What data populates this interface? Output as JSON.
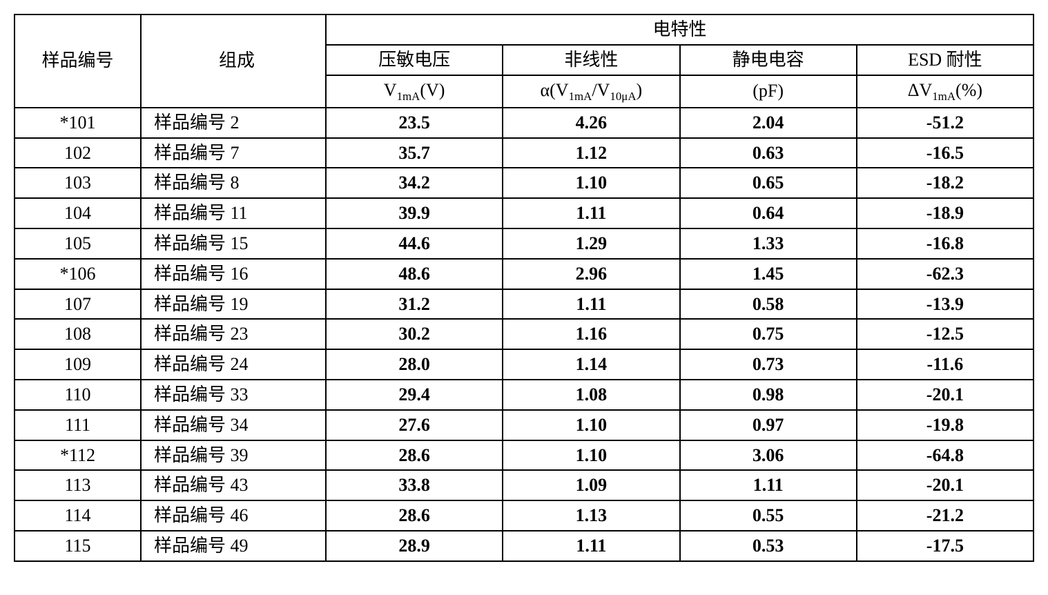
{
  "header": {
    "sample_no": "样品编号",
    "composition": "组成",
    "elec_props": "电特性",
    "clamp_voltage": "压敏电压",
    "nonlinearity": "非线性",
    "capacitance": "静电电容",
    "esd": "ESD 耐性",
    "v_unit_prefix": "V",
    "v_unit_sub": "1mA",
    "v_unit_suffix": "(V)",
    "a_prefix": "α(V",
    "a_sub1": "1mA",
    "a_mid": "/V",
    "a_sub2": "10μA",
    "a_suffix": ")",
    "c_unit": "(pF)",
    "e_prefix": "ΔV",
    "e_sub": "1mA",
    "e_suffix": "(%)"
  },
  "rows": [
    {
      "id": "*101",
      "comp": "样品编号 2",
      "v": "23.5",
      "a": "4.26",
      "c": "2.04",
      "e": "-51.2"
    },
    {
      "id": "102",
      "comp": "样品编号 7",
      "v": "35.7",
      "a": "1.12",
      "c": "0.63",
      "e": "-16.5"
    },
    {
      "id": "103",
      "comp": "样品编号 8",
      "v": "34.2",
      "a": "1.10",
      "c": "0.65",
      "e": "-18.2"
    },
    {
      "id": "104",
      "comp": "样品编号 11",
      "v": "39.9",
      "a": "1.11",
      "c": "0.64",
      "e": "-18.9"
    },
    {
      "id": "105",
      "comp": "样品编号 15",
      "v": "44.6",
      "a": "1.29",
      "c": "1.33",
      "e": "-16.8"
    },
    {
      "id": "*106",
      "comp": "样品编号 16",
      "v": "48.6",
      "a": "2.96",
      "c": "1.45",
      "e": "-62.3"
    },
    {
      "id": "107",
      "comp": "样品编号 19",
      "v": "31.2",
      "a": "1.11",
      "c": "0.58",
      "e": "-13.9"
    },
    {
      "id": "108",
      "comp": "样品编号 23",
      "v": "30.2",
      "a": "1.16",
      "c": "0.75",
      "e": "-12.5"
    },
    {
      "id": "109",
      "comp": "样品编号 24",
      "v": "28.0",
      "a": "1.14",
      "c": "0.73",
      "e": "-11.6"
    },
    {
      "id": "110",
      "comp": "样品编号 33",
      "v": "29.4",
      "a": "1.08",
      "c": "0.98",
      "e": "-20.1"
    },
    {
      "id": "111",
      "comp": "样品编号 34",
      "v": "27.6",
      "a": "1.10",
      "c": "0.97",
      "e": "-19.8"
    },
    {
      "id": "*112",
      "comp": "样品编号 39",
      "v": "28.6",
      "a": "1.10",
      "c": "3.06",
      "e": "-64.8"
    },
    {
      "id": "113",
      "comp": "样品编号 43",
      "v": "33.8",
      "a": "1.09",
      "c": "1.11",
      "e": "-20.1"
    },
    {
      "id": "114",
      "comp": "样品编号 46",
      "v": "28.6",
      "a": "1.13",
      "c": "0.55",
      "e": "-21.2"
    },
    {
      "id": "115",
      "comp": "样品编号 49",
      "v": "28.9",
      "a": "1.11",
      "c": "0.53",
      "e": "-17.5"
    }
  ],
  "style": {
    "border_color": "#000000",
    "background_color": "#ffffff",
    "font_size_pt": 20,
    "header_font_weight": "normal",
    "data_font_weight": "bold"
  }
}
